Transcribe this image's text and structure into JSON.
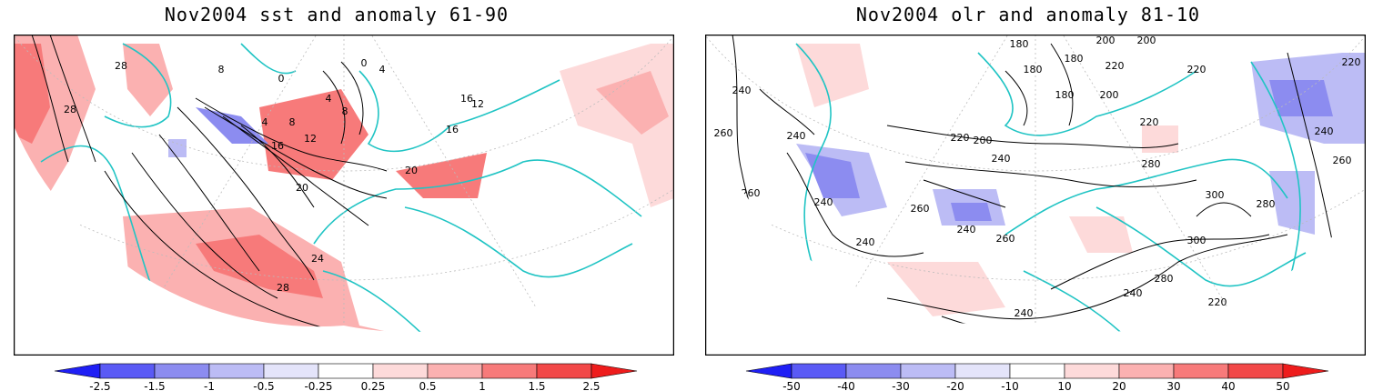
{
  "panels": [
    {
      "title": "Nov2004 sst and anomaly 61-90",
      "contour_labels": [
        "28",
        "28",
        "8",
        "0",
        "0",
        "4",
        "4",
        "4",
        "8",
        "8",
        "12",
        "16",
        "16",
        "12",
        "16",
        "20",
        "20",
        "24",
        "28",
        "28"
      ],
      "colorbar": {
        "labels": [
          "-2.5",
          "-1.5",
          "-1",
          "-0.5",
          "-0.25",
          "0.25",
          "0.5",
          "1",
          "1.5",
          "2.5"
        ],
        "colors": [
          "#1f1ff5",
          "#5a5af5",
          "#8c8cf0",
          "#bcbcf5",
          "#e4e4fa",
          "#ffffff",
          "#fddada",
          "#fbb1b1",
          "#f77a7a",
          "#f24848",
          "#ee1c1c"
        ]
      }
    },
    {
      "title": "Nov2004 olr and anomaly 81-10",
      "contour_labels": [
        "180",
        "180",
        "180",
        "180",
        "200",
        "200",
        "200",
        "200",
        "220",
        "220",
        "220",
        "220",
        "240",
        "240",
        "240",
        "240",
        "240",
        "240",
        "260",
        "260",
        "260",
        "260",
        "280",
        "280",
        "280",
        "300",
        "300",
        "240",
        "220",
        "200",
        "260",
        "220",
        "240",
        "260",
        "240"
      ],
      "colorbar": {
        "labels": [
          "-50",
          "-40",
          "-30",
          "-20",
          "-10",
          "10",
          "20",
          "30",
          "40",
          "50"
        ],
        "colors": [
          "#1f1ff5",
          "#5a5af5",
          "#8c8cf0",
          "#bcbcf5",
          "#e4e4fa",
          "#ffffff",
          "#fddada",
          "#fbb1b1",
          "#f77a7a",
          "#f24848",
          "#ee1c1c"
        ]
      }
    }
  ]
}
